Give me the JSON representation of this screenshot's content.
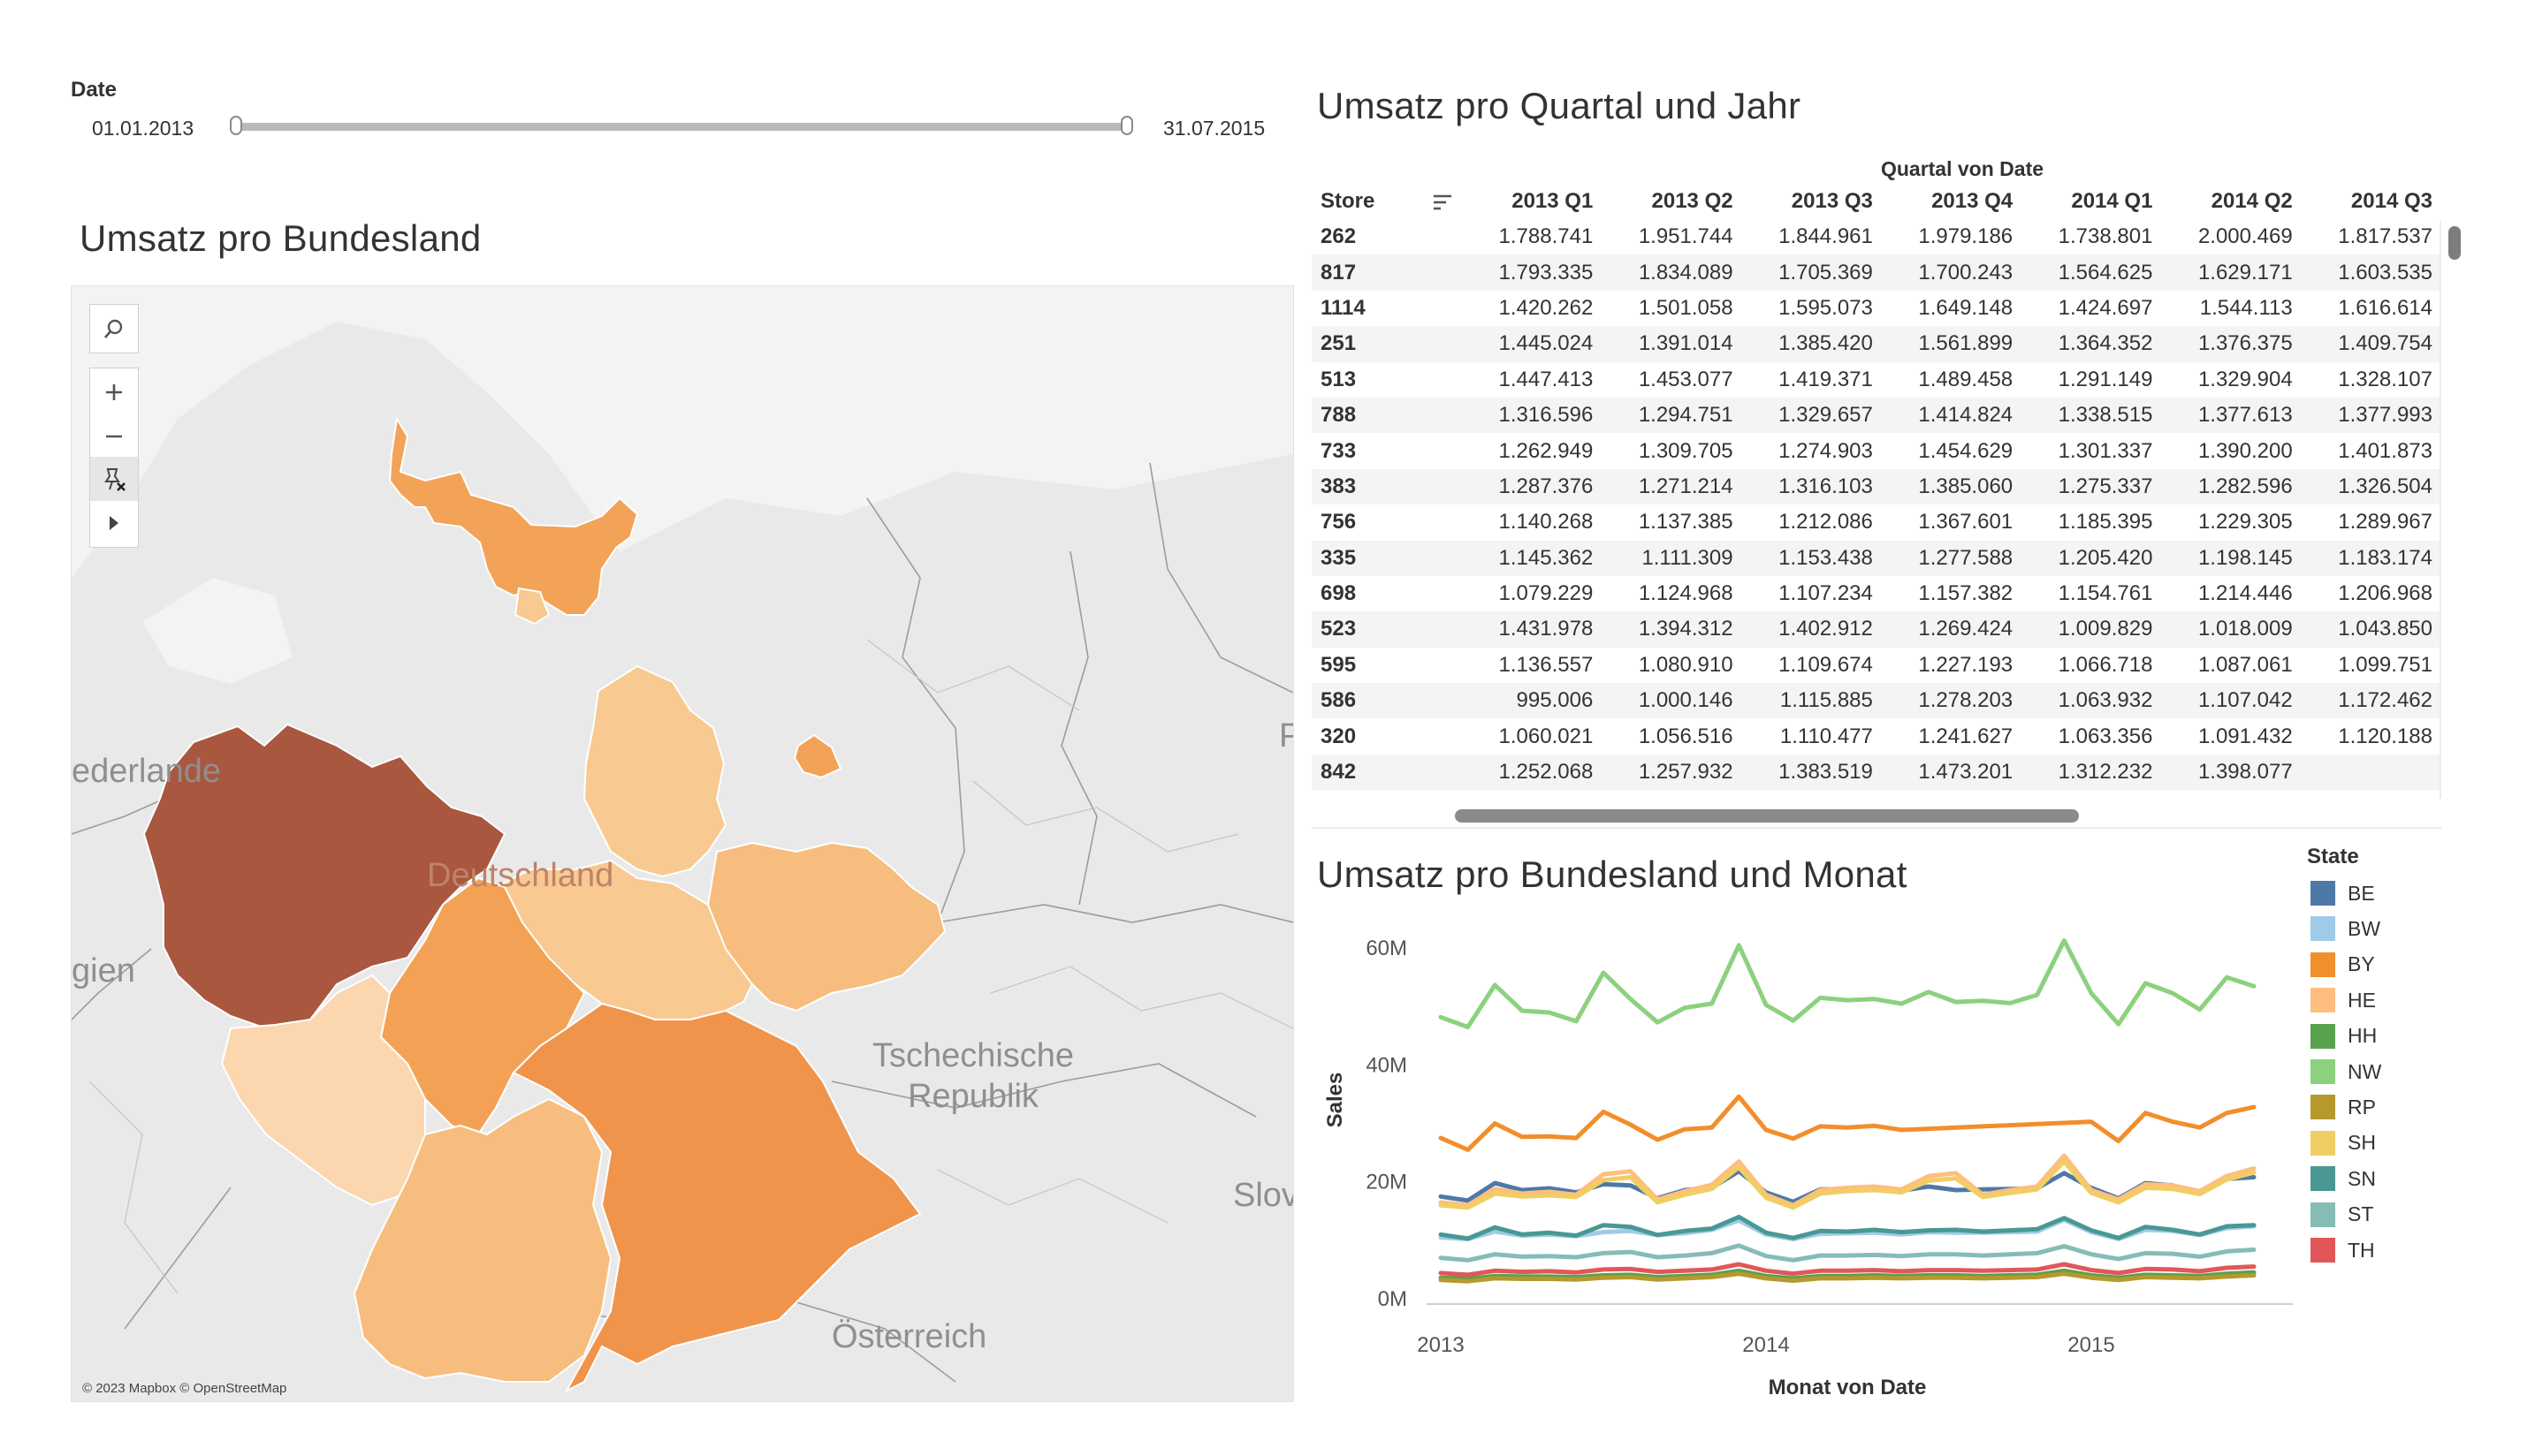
{
  "filter": {
    "label": "Date",
    "start": "01.01.2013",
    "end": "31.07.2015"
  },
  "map": {
    "title": "Umsatz pro Bundesland",
    "labels": {
      "nl": "ederlande",
      "be": "gien",
      "de": "Deutschland",
      "cz_line1": "Tschechische",
      "cz_line2": "Republik",
      "at": "Österreich",
      "sk": "Slov",
      "pl": "P"
    },
    "credit": "© 2023 Mapbox © OpenStreetMap",
    "colors": {
      "NW": "#a9573f",
      "BY": "#f0944b",
      "SH": "#f2a357",
      "NI": "#f0a054",
      "HE": "#f3a255",
      "BW": "#f6bd7e",
      "SN": "#f6bd7e",
      "TH": "#f8c990",
      "ST": "#f8c990",
      "RP": "#fbd6ae",
      "HH": "#f8c990",
      "BE": "#f2a357"
    },
    "controls": [
      "search-icon",
      "zoom-in-icon",
      "zoom-out-icon",
      "reset-pin-icon",
      "expand-arrow-icon"
    ]
  },
  "table": {
    "title": "Umsatz pro Quartal und Jahr",
    "group_header": "Quartal von Date",
    "store_header": "Store",
    "columns": [
      "2013 Q1",
      "2013 Q2",
      "2013 Q3",
      "2013 Q4",
      "2014 Q1",
      "2014 Q2",
      "2014 Q3"
    ],
    "rows": [
      [
        "262",
        "1.788.741",
        "1.951.744",
        "1.844.961",
        "1.979.186",
        "1.738.801",
        "2.000.469",
        "1.817.537"
      ],
      [
        "817",
        "1.793.335",
        "1.834.089",
        "1.705.369",
        "1.700.243",
        "1.564.625",
        "1.629.171",
        "1.603.535"
      ],
      [
        "1114",
        "1.420.262",
        "1.501.058",
        "1.595.073",
        "1.649.148",
        "1.424.697",
        "1.544.113",
        "1.616.614"
      ],
      [
        "251",
        "1.445.024",
        "1.391.014",
        "1.385.420",
        "1.561.899",
        "1.364.352",
        "1.376.375",
        "1.409.754"
      ],
      [
        "513",
        "1.447.413",
        "1.453.077",
        "1.419.371",
        "1.489.458",
        "1.291.149",
        "1.329.904",
        "1.328.107"
      ],
      [
        "788",
        "1.316.596",
        "1.294.751",
        "1.329.657",
        "1.414.824",
        "1.338.515",
        "1.377.613",
        "1.377.993"
      ],
      [
        "733",
        "1.262.949",
        "1.309.705",
        "1.274.903",
        "1.454.629",
        "1.301.337",
        "1.390.200",
        "1.401.873"
      ],
      [
        "383",
        "1.287.376",
        "1.271.214",
        "1.316.103",
        "1.385.060",
        "1.275.337",
        "1.282.596",
        "1.326.504"
      ],
      [
        "756",
        "1.140.268",
        "1.137.385",
        "1.212.086",
        "1.367.601",
        "1.185.395",
        "1.229.305",
        "1.289.967"
      ],
      [
        "335",
        "1.145.362",
        "1.111.309",
        "1.153.438",
        "1.277.588",
        "1.205.420",
        "1.198.145",
        "1.183.174"
      ],
      [
        "698",
        "1.079.229",
        "1.124.968",
        "1.107.234",
        "1.157.382",
        "1.154.761",
        "1.214.446",
        "1.206.968"
      ],
      [
        "523",
        "1.431.978",
        "1.394.312",
        "1.402.912",
        "1.269.424",
        "1.009.829",
        "1.018.009",
        "1.043.850"
      ],
      [
        "595",
        "1.136.557",
        "1.080.910",
        "1.109.674",
        "1.227.193",
        "1.066.718",
        "1.087.061",
        "1.099.751"
      ],
      [
        "586",
        "995.006",
        "1.000.146",
        "1.115.885",
        "1.278.203",
        "1.063.932",
        "1.107.042",
        "1.172.462"
      ],
      [
        "320",
        "1.060.021",
        "1.056.516",
        "1.110.477",
        "1.241.627",
        "1.063.356",
        "1.091.432",
        "1.120.188"
      ],
      [
        "842",
        "1.252.068",
        "1.257.932",
        "1.383.519",
        "1.473.201",
        "1.312.232",
        "1.398.077",
        ""
      ]
    ]
  },
  "chart_data": {
    "type": "line",
    "title": "Umsatz pro Bundesland und Monat",
    "xlabel": "Monat von Date",
    "ylabel": "Sales",
    "x_ticks": [
      "2013",
      "2014",
      "2015"
    ],
    "y_ticks": [
      "0M",
      "20M",
      "40M",
      "60M"
    ],
    "ylim": [
      0,
      62
    ],
    "x": [
      "2013-01",
      "2013-02",
      "2013-03",
      "2013-04",
      "2013-05",
      "2013-06",
      "2013-07",
      "2013-08",
      "2013-09",
      "2013-10",
      "2013-11",
      "2013-12",
      "2014-01",
      "2014-02",
      "2014-03",
      "2014-04",
      "2014-05",
      "2014-06",
      "2014-07",
      "2014-08",
      "2014-09",
      "2014-10",
      "2014-11",
      "2014-12",
      "2015-01",
      "2015-02",
      "2015-03",
      "2015-04",
      "2015-05",
      "2015-06",
      "2015-07"
    ],
    "legend_title": "State",
    "grid": false,
    "series": [
      {
        "name": "BE",
        "color": "#4e79a7",
        "values": [
          17.5,
          16.8,
          19.8,
          18.6,
          18.9,
          18.2,
          19.6,
          19.4,
          17.2,
          18.6,
          19.0,
          21.8,
          18.2,
          16.6,
          18.7,
          18.8,
          18.9,
          18.5,
          19.2,
          18.6,
          18.7,
          18.8,
          18.9,
          21.5,
          19.0,
          17.2,
          19.8,
          19.4,
          18.1,
          20.5,
          20.8
        ]
      },
      {
        "name": "BW",
        "color": "#a0cbe8",
        "values": [
          10.5,
          10.2,
          11.5,
          10.8,
          11.0,
          10.7,
          11.4,
          11.6,
          10.9,
          11.2,
          11.8,
          13.4,
          11.0,
          10.2,
          11.1,
          11.2,
          11.3,
          11.0,
          11.4,
          11.3,
          11.3,
          11.4,
          11.5,
          13.5,
          11.4,
          10.2,
          11.8,
          11.6,
          10.9,
          12.1,
          12.4
        ]
      },
      {
        "name": "BY",
        "color": "#f28e2b",
        "values": [
          27.5,
          25.5,
          30.0,
          27.7,
          27.8,
          27.5,
          32.0,
          29.8,
          27.2,
          29.0,
          29.3,
          34.6,
          28.9,
          27.4,
          29.5,
          29.3,
          29.6,
          28.9,
          29.1,
          29.3,
          29.5,
          29.7,
          29.9,
          30.1,
          30.3,
          27.0,
          31.8,
          30.3,
          29.3,
          31.8,
          32.8
        ]
      },
      {
        "name": "HE",
        "color": "#ffbe7d",
        "values": [
          16.5,
          16.0,
          18.8,
          18.0,
          18.3,
          17.8,
          21.3,
          21.8,
          17.0,
          18.4,
          19.5,
          23.5,
          17.8,
          16.0,
          18.6,
          19.0,
          19.2,
          18.7,
          21.0,
          21.5,
          17.8,
          18.6,
          19.2,
          24.5,
          18.6,
          17.0,
          19.6,
          19.4,
          18.4,
          21.0,
          22.3
        ]
      },
      {
        "name": "HH",
        "color": "#59a14f",
        "values": [
          3.6,
          3.4,
          3.9,
          3.8,
          3.8,
          3.7,
          4.0,
          4.1,
          3.7,
          3.9,
          4.1,
          4.8,
          3.9,
          3.5,
          3.9,
          3.9,
          4.0,
          3.9,
          4.0,
          4.0,
          3.9,
          4.0,
          4.1,
          4.8,
          4.0,
          3.6,
          4.1,
          4.0,
          3.9,
          4.3,
          4.5
        ]
      },
      {
        "name": "NW",
        "color": "#8cd17d",
        "values": [
          48.2,
          46.5,
          53.7,
          49.3,
          49.0,
          47.5,
          55.8,
          51.3,
          47.3,
          49.8,
          50.5,
          60.5,
          50.3,
          47.6,
          51.5,
          51.1,
          51.3,
          50.5,
          52.5,
          50.8,
          51.0,
          50.6,
          52.0,
          61.3,
          52.3,
          47.0,
          54.0,
          52.3,
          49.5,
          55.0,
          53.5
        ]
      },
      {
        "name": "RP",
        "color": "#b6992d",
        "values": [
          3.2,
          3.0,
          3.5,
          3.4,
          3.4,
          3.3,
          3.6,
          3.7,
          3.3,
          3.5,
          3.7,
          4.3,
          3.5,
          3.1,
          3.5,
          3.5,
          3.6,
          3.5,
          3.6,
          3.6,
          3.5,
          3.6,
          3.7,
          4.3,
          3.6,
          3.2,
          3.7,
          3.6,
          3.5,
          3.8,
          4.0
        ]
      },
      {
        "name": "SH",
        "color": "#f1ce63",
        "values": [
          16.0,
          15.6,
          18.0,
          17.5,
          17.7,
          17.4,
          20.3,
          20.8,
          16.5,
          17.8,
          18.8,
          22.5,
          17.3,
          15.6,
          18.0,
          18.4,
          18.6,
          18.2,
          20.2,
          20.6,
          17.4,
          18.1,
          18.7,
          23.5,
          18.1,
          16.5,
          19.0,
          18.8,
          17.9,
          20.4,
          21.6
        ]
      },
      {
        "name": "SN",
        "color": "#499894",
        "values": [
          11.0,
          10.3,
          12.2,
          11.0,
          11.3,
          10.8,
          12.6,
          12.3,
          10.9,
          11.6,
          12.0,
          14.0,
          11.3,
          10.4,
          11.6,
          11.5,
          11.8,
          11.4,
          11.7,
          11.8,
          11.5,
          11.7,
          11.9,
          13.8,
          11.7,
          10.4,
          12.3,
          11.8,
          11.0,
          12.4,
          12.6
        ]
      },
      {
        "name": "ST",
        "color": "#86bcb6",
        "values": [
          7.0,
          6.6,
          7.6,
          7.2,
          7.3,
          7.1,
          7.8,
          8.0,
          7.1,
          7.4,
          7.8,
          9.1,
          7.3,
          6.6,
          7.4,
          7.4,
          7.5,
          7.3,
          7.6,
          7.6,
          7.4,
          7.6,
          7.8,
          9.0,
          7.6,
          6.8,
          7.8,
          7.7,
          7.2,
          8.1,
          8.4
        ]
      },
      {
        "name": "TH",
        "color": "#e15759",
        "values": [
          4.4,
          4.1,
          4.8,
          4.6,
          4.7,
          4.5,
          5.0,
          5.1,
          4.6,
          4.8,
          5.0,
          5.9,
          4.8,
          4.3,
          4.8,
          4.8,
          4.9,
          4.7,
          4.9,
          4.9,
          4.8,
          4.9,
          5.0,
          5.9,
          4.9,
          4.4,
          5.1,
          5.0,
          4.7,
          5.3,
          5.5
        ]
      }
    ]
  }
}
